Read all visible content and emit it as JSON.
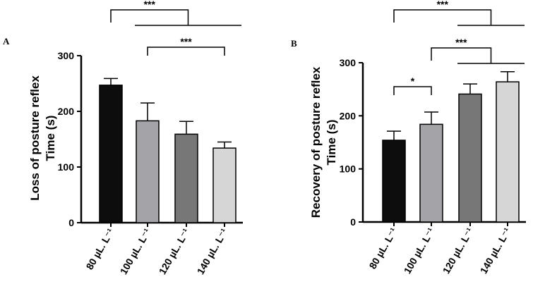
{
  "chart_data": [
    {
      "type": "bar",
      "panel": "A",
      "ylabel_line1": "Loss of posture reflex",
      "ylabel_line2": "Time (s)",
      "xlabel": "",
      "ylim": [
        0,
        300
      ],
      "yticks": [
        0,
        100,
        200,
        300
      ],
      "categories": [
        "80 µL. L⁻¹",
        "100 µL. L⁻¹",
        "120 µL. L⁻¹",
        "140 µL. L⁻¹"
      ],
      "values": [
        247,
        183,
        159,
        134
      ],
      "errors": [
        12,
        32,
        23,
        11
      ],
      "bar_colors": [
        "#0d0d0d",
        "#a4a4a8",
        "#777777",
        "#d6d6d6"
      ],
      "significance": [
        {
          "label": "***",
          "from": 0,
          "to_group": [
            1,
            3
          ],
          "level": 2
        },
        {
          "label": "***",
          "from": 1,
          "to": 3,
          "level": 1
        }
      ]
    },
    {
      "type": "bar",
      "panel": "B",
      "ylabel_line1": "Recovery of posture reflex",
      "ylabel_line2": "Time (s)",
      "xlabel": "",
      "ylim": [
        0,
        300
      ],
      "yticks": [
        0,
        100,
        200,
        300
      ],
      "categories": [
        "80 µL. L⁻¹",
        "100 µL. L⁻¹",
        "120 µL. L⁻¹",
        "140 µL. L⁻¹"
      ],
      "values": [
        154,
        184,
        241,
        264
      ],
      "errors": [
        17,
        23,
        19,
        19
      ],
      "bar_colors": [
        "#0d0d0d",
        "#a4a4a8",
        "#777777",
        "#d6d6d6"
      ],
      "significance": [
        {
          "label": "*",
          "from": 0,
          "to": 1,
          "level": 1
        },
        {
          "label": "***",
          "from": 1,
          "to_group": [
            2,
            3
          ],
          "level": 2
        },
        {
          "label": "***",
          "from": 0,
          "to_group": [
            2,
            3
          ],
          "level": 3
        }
      ]
    }
  ]
}
